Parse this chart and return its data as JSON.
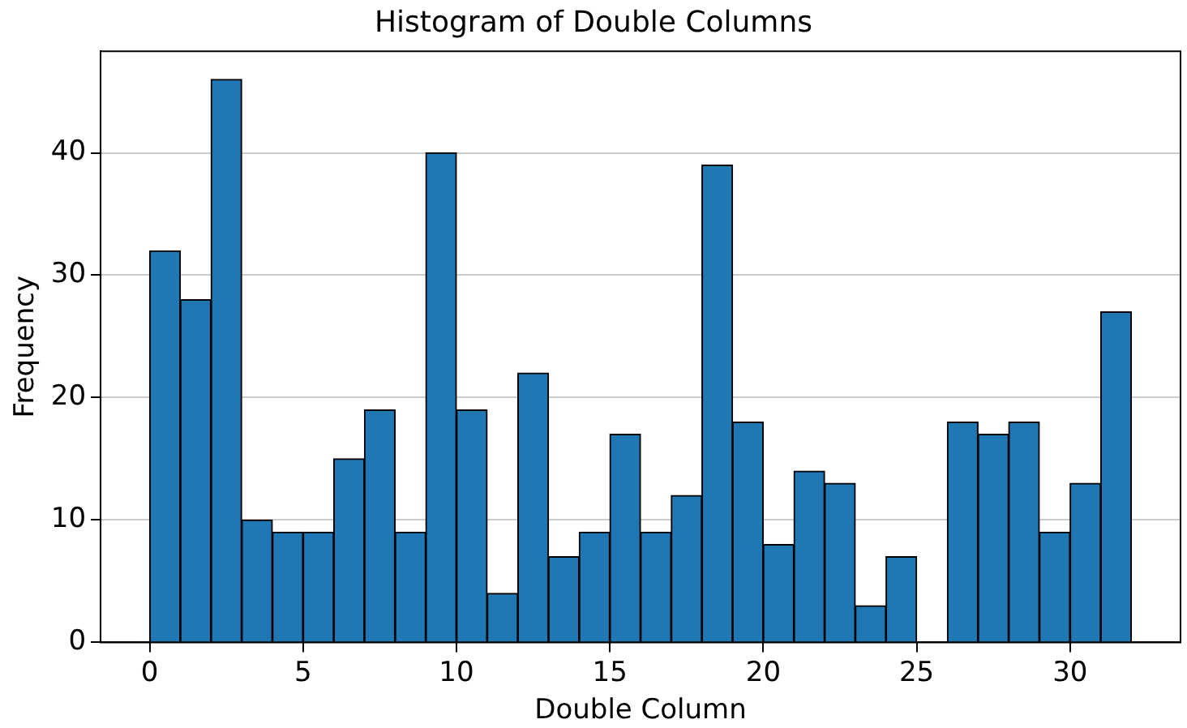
{
  "chart_data": {
    "type": "histogram",
    "title": "Histogram of Double Columns",
    "xlabel": "Double Column",
    "ylabel": "Frequency",
    "bins": [
      0,
      1,
      2,
      3,
      4,
      5,
      6,
      7,
      8,
      9,
      10,
      11,
      12,
      13,
      14,
      15,
      16,
      17,
      18,
      19,
      20,
      21,
      22,
      23,
      24,
      25,
      26,
      27,
      28,
      29,
      30,
      31,
      32
    ],
    "values": [
      32,
      28,
      46,
      10,
      9,
      9,
      15,
      19,
      9,
      40,
      19,
      4,
      22,
      7,
      9,
      17,
      9,
      12,
      39,
      18,
      8,
      14,
      13,
      3,
      7,
      0,
      18,
      17,
      18,
      9,
      13,
      27
    ],
    "color": "#1f77b4",
    "xlim": [
      -1.6,
      33.6
    ],
    "ylim": [
      0,
      48.3
    ],
    "xticks": [
      0,
      5,
      10,
      15,
      20,
      25,
      30
    ],
    "yticks": [
      0,
      10,
      20,
      30,
      40
    ],
    "grid": "y",
    "legend": false
  }
}
